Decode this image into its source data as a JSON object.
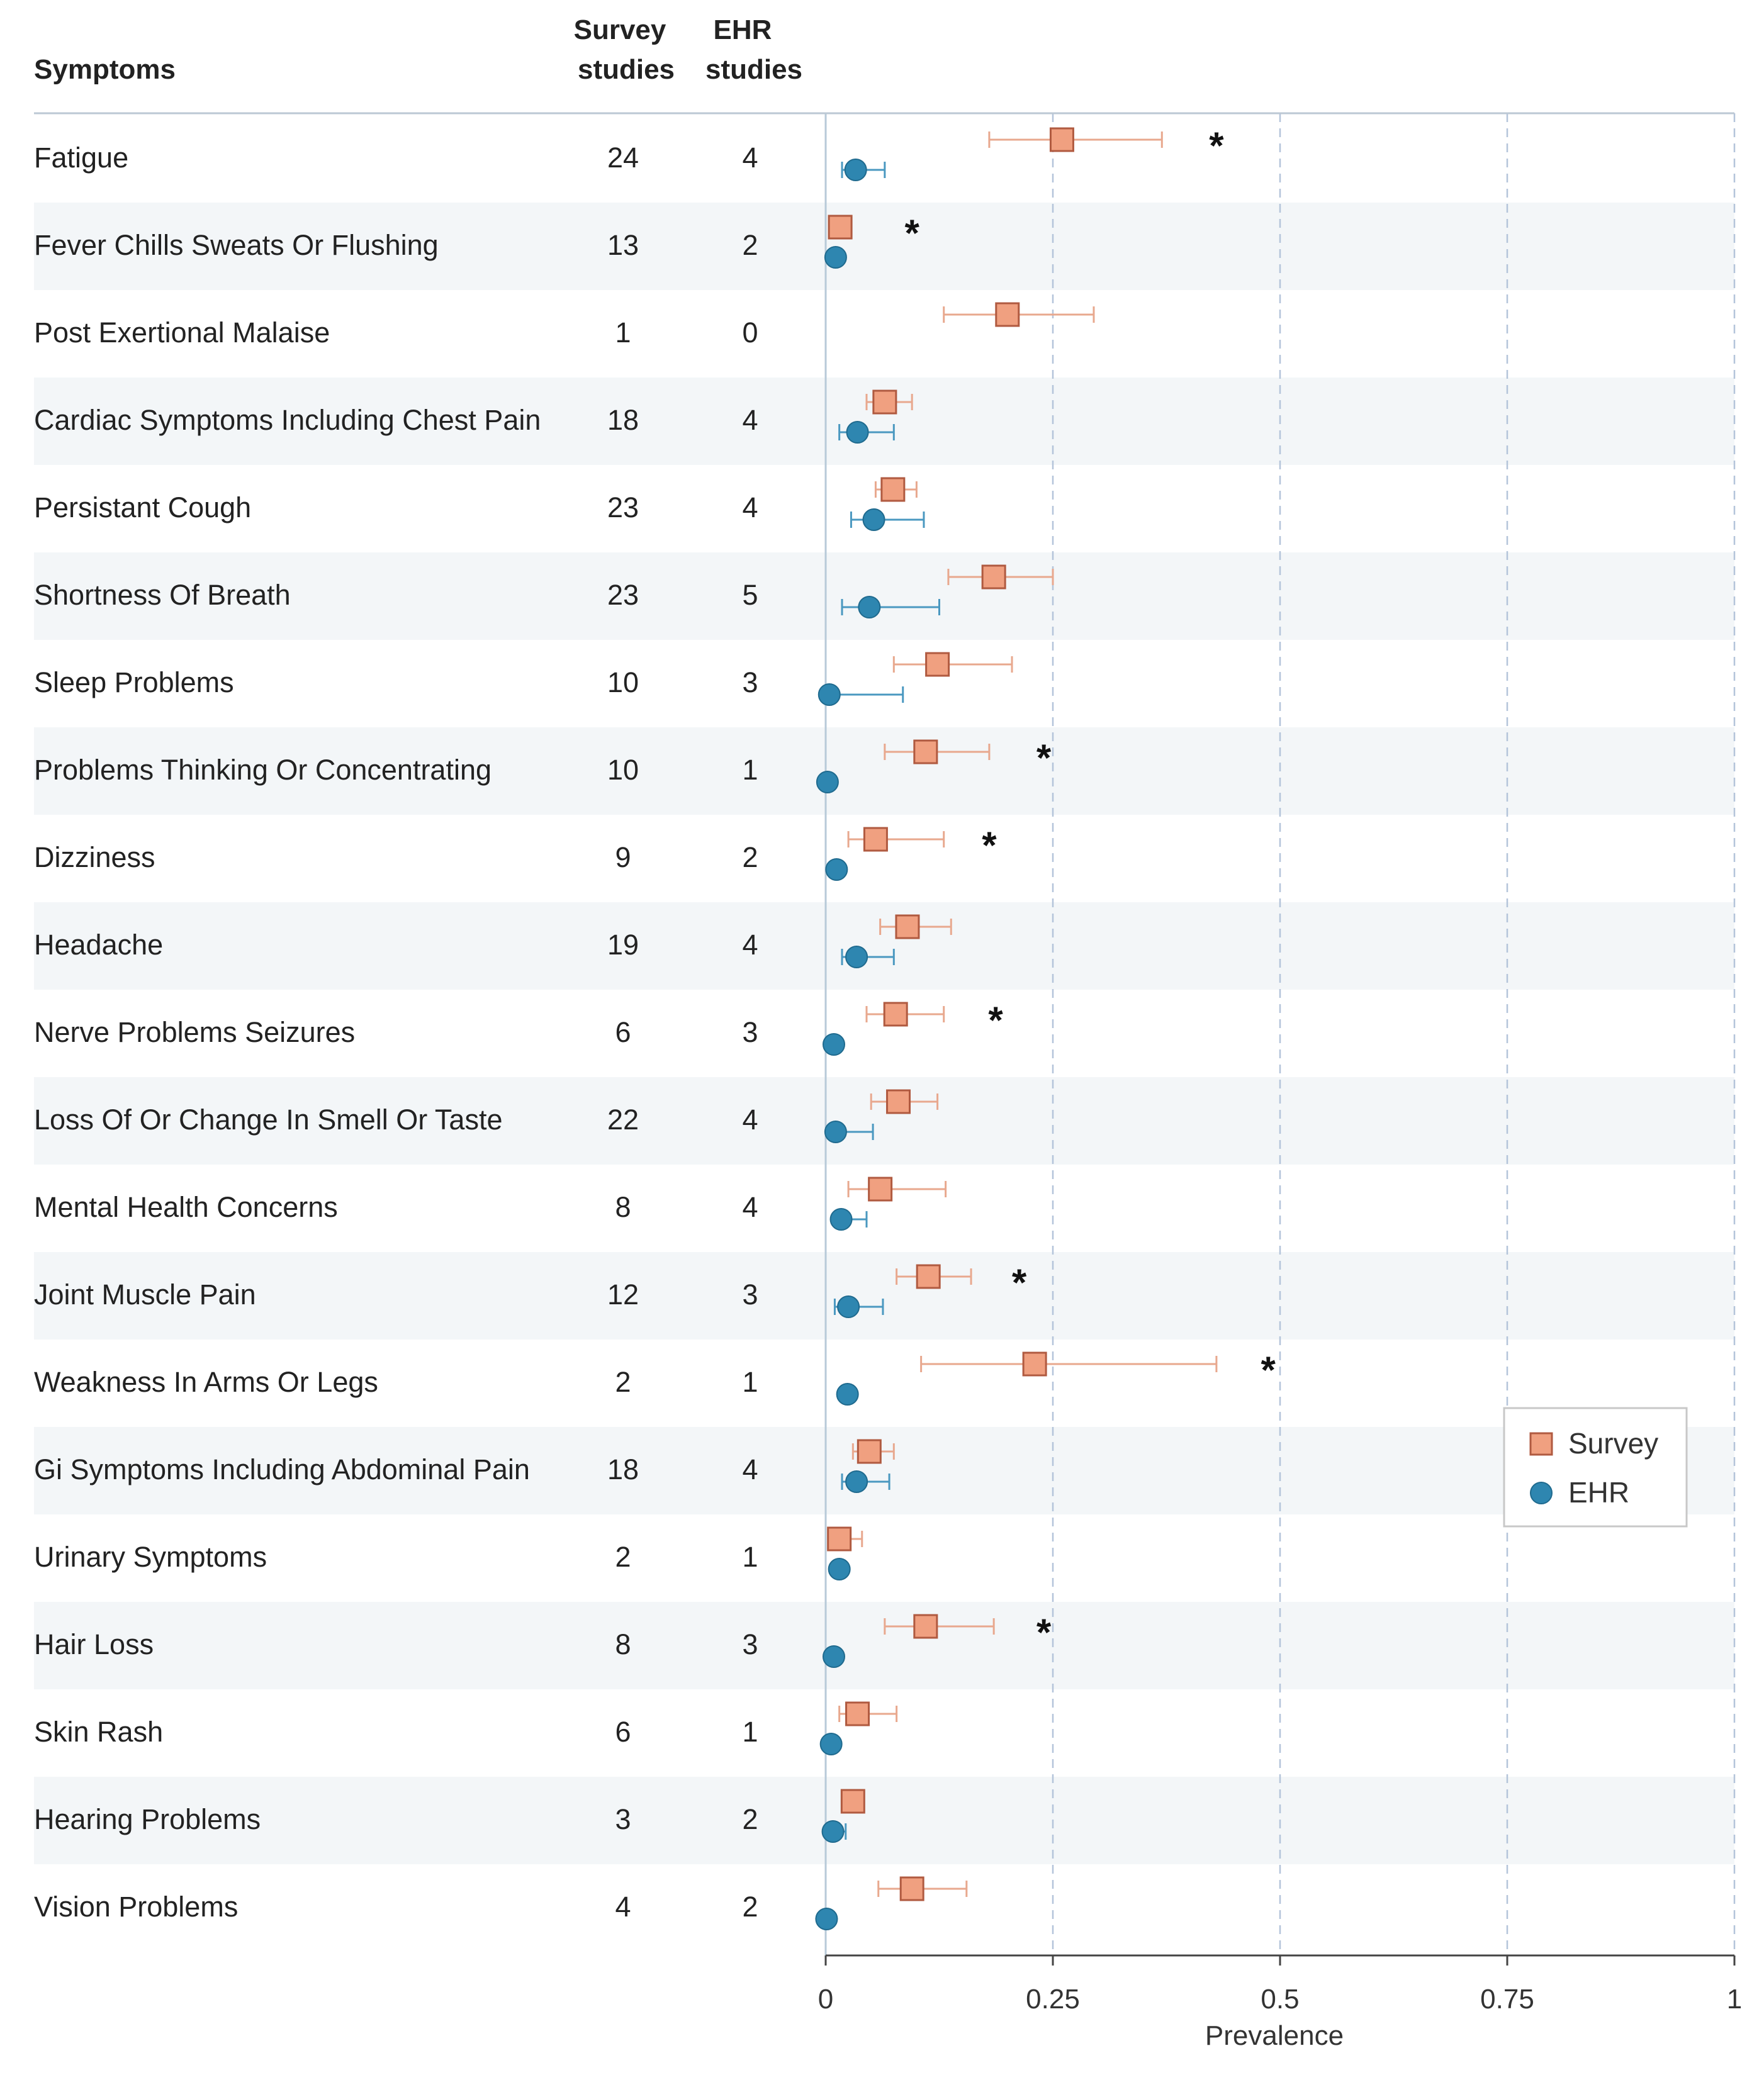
{
  "header": {
    "symptoms": "Symptoms",
    "survey_line1": "Survey",
    "survey_line2": "studies",
    "ehr_line1": "EHR",
    "ehr_line2": "studies"
  },
  "chart_data": {
    "type": "forest",
    "xlabel": "Prevalence",
    "xlim": [
      0,
      1
    ],
    "xticks": [
      0,
      0.25,
      0.5,
      0.75,
      1
    ],
    "xtick_labels": [
      "0",
      "0.25",
      "0.5",
      "0.75",
      "1"
    ],
    "grid": "dashed vertical",
    "legend_position": "right",
    "significance_marker": "*",
    "series": [
      {
        "name": "Survey",
        "marker": "square",
        "color": "#f0a080",
        "stroke": "#b05a40"
      },
      {
        "name": "EHR",
        "marker": "circle",
        "color": "#2e86b0",
        "stroke": "#1f6a8e"
      }
    ],
    "rows": [
      {
        "label": "Fatigue",
        "survey_n": "24",
        "ehr_n": "4",
        "survey": [
          0.26,
          0.18,
          0.37
        ],
        "ehr": [
          0.033,
          0.018,
          0.065
        ],
        "sig": true,
        "sig_x": 0.43
      },
      {
        "label": "Fever Chills Sweats Or Flushing",
        "survey_n": "13",
        "ehr_n": "2",
        "survey": [
          0.016,
          0.01,
          0.022
        ],
        "ehr": [
          0.011,
          0.008,
          0.014
        ],
        "sig": true,
        "sig_x": 0.095
      },
      {
        "label": "Post Exertional Malaise",
        "survey_n": "1",
        "ehr_n": "0",
        "survey": [
          0.2,
          0.13,
          0.295
        ],
        "ehr": null,
        "sig": false
      },
      {
        "label": "Cardiac Symptoms Including Chest Pain",
        "survey_n": "18",
        "ehr_n": "4",
        "survey": [
          0.065,
          0.045,
          0.095
        ],
        "ehr": [
          0.035,
          0.015,
          0.075
        ],
        "sig": false
      },
      {
        "label": "Persistant Cough",
        "survey_n": "23",
        "ehr_n": "4",
        "survey": [
          0.074,
          0.055,
          0.1
        ],
        "ehr": [
          0.053,
          0.028,
          0.108
        ],
        "sig": false
      },
      {
        "label": "Shortness Of Breath",
        "survey_n": "23",
        "ehr_n": "5",
        "survey": [
          0.185,
          0.135,
          0.25
        ],
        "ehr": [
          0.048,
          0.018,
          0.125
        ],
        "sig": false
      },
      {
        "label": "Sleep Problems",
        "survey_n": "10",
        "ehr_n": "3",
        "survey": [
          0.123,
          0.075,
          0.205
        ],
        "ehr": [
          0.004,
          0.001,
          0.085
        ],
        "sig": false
      },
      {
        "label": "Problems Thinking Or Concentrating",
        "survey_n": "10",
        "ehr_n": "1",
        "survey": [
          0.11,
          0.065,
          0.18
        ],
        "ehr": [
          0.002,
          0.001,
          0.004
        ],
        "sig": true,
        "sig_x": 0.24
      },
      {
        "label": "Dizziness",
        "survey_n": "9",
        "ehr_n": "2",
        "survey": [
          0.055,
          0.025,
          0.13
        ],
        "ehr": [
          0.012,
          0.008,
          0.016
        ],
        "sig": true,
        "sig_x": 0.18
      },
      {
        "label": "Headache",
        "survey_n": "19",
        "ehr_n": "4",
        "survey": [
          0.09,
          0.06,
          0.138
        ],
        "ehr": [
          0.034,
          0.018,
          0.075
        ],
        "sig": false
      },
      {
        "label": "Nerve Problems Seizures",
        "survey_n": "6",
        "ehr_n": "3",
        "survey": [
          0.077,
          0.045,
          0.13
        ],
        "ehr": [
          0.009,
          0.006,
          0.013
        ],
        "sig": true,
        "sig_x": 0.187
      },
      {
        "label": "Loss Of Or Change In Smell Or Taste",
        "survey_n": "22",
        "ehr_n": "4",
        "survey": [
          0.08,
          0.05,
          0.123
        ],
        "ehr": [
          0.011,
          0.005,
          0.052
        ],
        "sig": false
      },
      {
        "label": "Mental Health Concerns",
        "survey_n": "8",
        "ehr_n": "4",
        "survey": [
          0.06,
          0.025,
          0.132
        ],
        "ehr": [
          0.017,
          0.01,
          0.045
        ],
        "sig": false
      },
      {
        "label": "Joint Muscle Pain",
        "survey_n": "12",
        "ehr_n": "3",
        "survey": [
          0.113,
          0.078,
          0.16
        ],
        "ehr": [
          0.025,
          0.01,
          0.063
        ],
        "sig": true,
        "sig_x": 0.213
      },
      {
        "label": "Weakness In Arms Or Legs",
        "survey_n": "2",
        "ehr_n": "1",
        "survey": [
          0.23,
          0.105,
          0.43
        ],
        "ehr": [
          0.024,
          0.018,
          0.03
        ],
        "sig": true,
        "sig_x": 0.487
      },
      {
        "label": "Gi Symptoms Including Abdominal Pain",
        "survey_n": "18",
        "ehr_n": "4",
        "survey": [
          0.048,
          0.03,
          0.075
        ],
        "ehr": [
          0.034,
          0.018,
          0.07
        ],
        "sig": false
      },
      {
        "label": "Urinary Symptoms",
        "survey_n": "2",
        "ehr_n": "1",
        "survey": [
          0.015,
          0.005,
          0.04
        ],
        "ehr": [
          0.015,
          0.01,
          0.02
        ],
        "sig": false
      },
      {
        "label": "Hair Loss",
        "survey_n": "8",
        "ehr_n": "3",
        "survey": [
          0.11,
          0.065,
          0.185
        ],
        "ehr": [
          0.009,
          0.005,
          0.014
        ],
        "sig": true,
        "sig_x": 0.24
      },
      {
        "label": "Skin Rash",
        "survey_n": "6",
        "ehr_n": "1",
        "survey": [
          0.035,
          0.015,
          0.078
        ],
        "ehr": [
          0.006,
          0.003,
          0.01
        ],
        "sig": false
      },
      {
        "label": "Hearing Problems",
        "survey_n": "3",
        "ehr_n": "2",
        "survey": [
          0.03,
          0.02,
          0.04
        ],
        "ehr": [
          0.008,
          0.002,
          0.022
        ],
        "sig": false
      },
      {
        "label": "Vision Problems",
        "survey_n": "4",
        "ehr_n": "2",
        "survey": [
          0.095,
          0.058,
          0.155
        ],
        "ehr": [
          0.001,
          0.0,
          0.003
        ],
        "sig": false
      }
    ]
  }
}
